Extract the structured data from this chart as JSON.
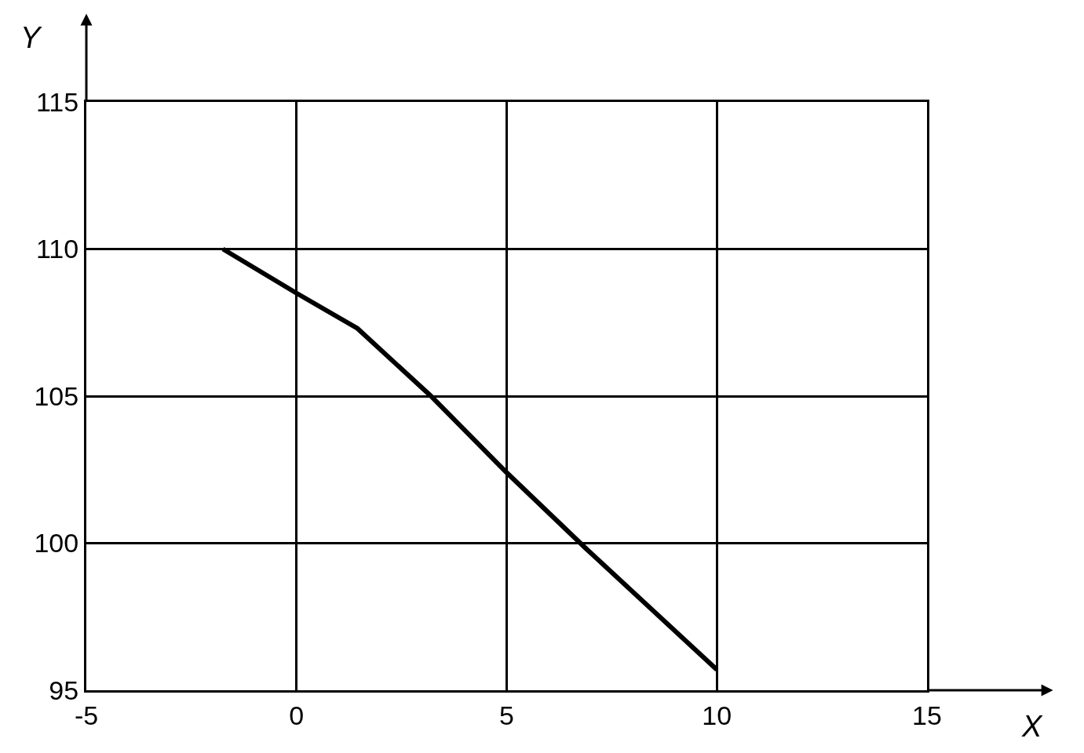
{
  "chart_data": {
    "type": "line",
    "xlabel": "X",
    "ylabel": "Y",
    "x": [
      -1.75,
      0,
      1.45,
      3.2,
      5,
      6.9,
      10
    ],
    "values": [
      110,
      108.5,
      107.3,
      105,
      102.4,
      99.8,
      95.7
    ],
    "color": "#000000",
    "xlim": [
      -5,
      15
    ],
    "ylim": [
      95,
      115
    ],
    "xticks": [
      -5,
      0,
      5,
      10,
      15
    ],
    "yticks": [
      95,
      100,
      105,
      110,
      115
    ],
    "grid": true,
    "marker": "none",
    "line_style": "solid"
  }
}
